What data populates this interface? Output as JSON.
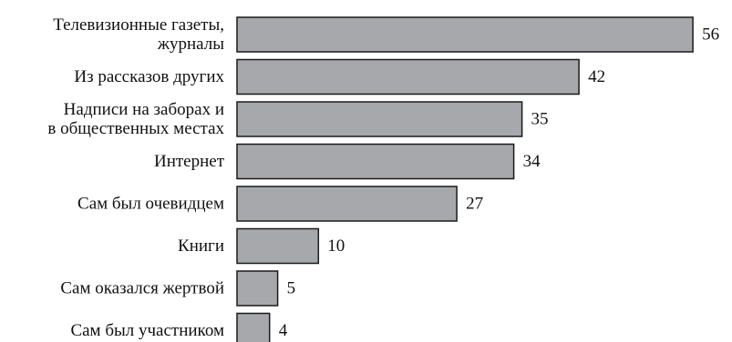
{
  "chart_data": {
    "type": "bar",
    "orientation": "horizontal",
    "title": "",
    "xlabel": "",
    "ylabel": "",
    "categories": [
      [
        "Телевизионные газеты,",
        "журналы"
      ],
      [
        "Из рассказов других"
      ],
      [
        "Надписи на заборах и",
        "в общественных местах"
      ],
      [
        "Интернет"
      ],
      [
        "Сам был очевидцем"
      ],
      [
        "Книги"
      ],
      [
        "Сам оказался жертвой"
      ],
      [
        "Сам был участником"
      ]
    ],
    "values": [
      56,
      42,
      35,
      34,
      27,
      10,
      5,
      4
    ],
    "xlim": [
      0,
      56
    ],
    "grid": false,
    "legend": "none",
    "bar_color": "#a7a8ab",
    "bar_edge_color": "#1a1a1a"
  }
}
